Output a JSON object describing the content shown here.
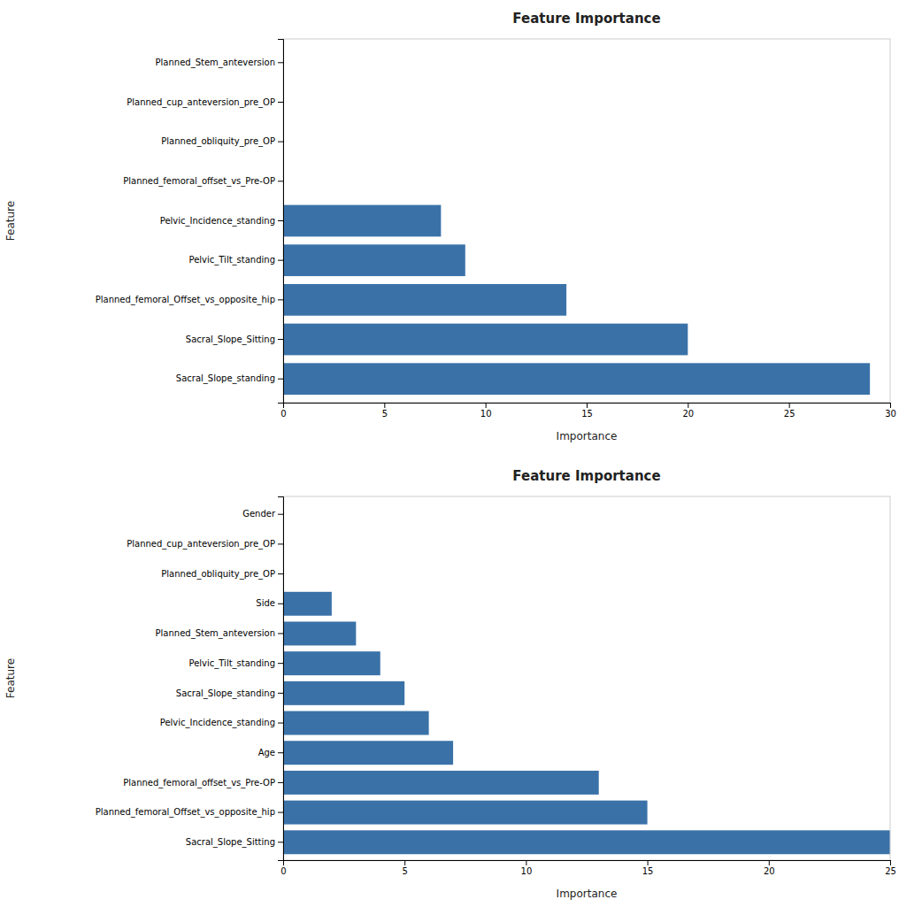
{
  "chart_data": [
    {
      "type": "bar",
      "orientation": "horizontal",
      "title": "Feature Importance",
      "categories": [
        "Planned_Stem_anteversion",
        "Planned_cup_anteversion_pre_OP",
        "Planned_obliquity_pre_OP",
        "Planned_femoral_offset_vs_Pre-OP",
        "Pelvic_Incidence_standing",
        "Pelvic_Tilt_standing",
        "Planned_femoral_Offset_vs_opposite_hip",
        "Sacral_Slope_Sitting",
        "Sacral_Slope_standing"
      ],
      "values": [
        0,
        0,
        0,
        0,
        7.8,
        9.0,
        14.0,
        20.0,
        29.0
      ],
      "color": "#3a72a8",
      "xlabel": "Importance",
      "ylabel": "Feature",
      "xlim": [
        0,
        30
      ],
      "xticks": [
        0,
        5,
        10,
        15,
        20,
        25,
        30
      ],
      "grid": false
    },
    {
      "type": "bar",
      "orientation": "horizontal",
      "title": "Feature Importance",
      "categories": [
        "Gender",
        "Planned_cup_anteversion_pre_OP",
        "Planned_obliquity_pre_OP",
        "Side",
        "Planned_Stem_anteversion",
        "Pelvic_Tilt_standing",
        "Sacral_Slope_standing",
        "Pelvic_Incidence_standing",
        "Age",
        "Planned_femoral_offset_vs_Pre-OP",
        "Planned_femoral_Offset_vs_opposite_hip",
        "Sacral_Slope_Sitting"
      ],
      "values": [
        0,
        0,
        0,
        2.0,
        3.0,
        4.0,
        5.0,
        6.0,
        7.0,
        13.0,
        15.0,
        25.0
      ],
      "color": "#3a72a8",
      "xlabel": "Importance",
      "ylabel": "Feature",
      "xlim": [
        0,
        25
      ],
      "xticks": [
        0,
        5,
        10,
        15,
        20,
        25
      ],
      "grid": false
    }
  ]
}
